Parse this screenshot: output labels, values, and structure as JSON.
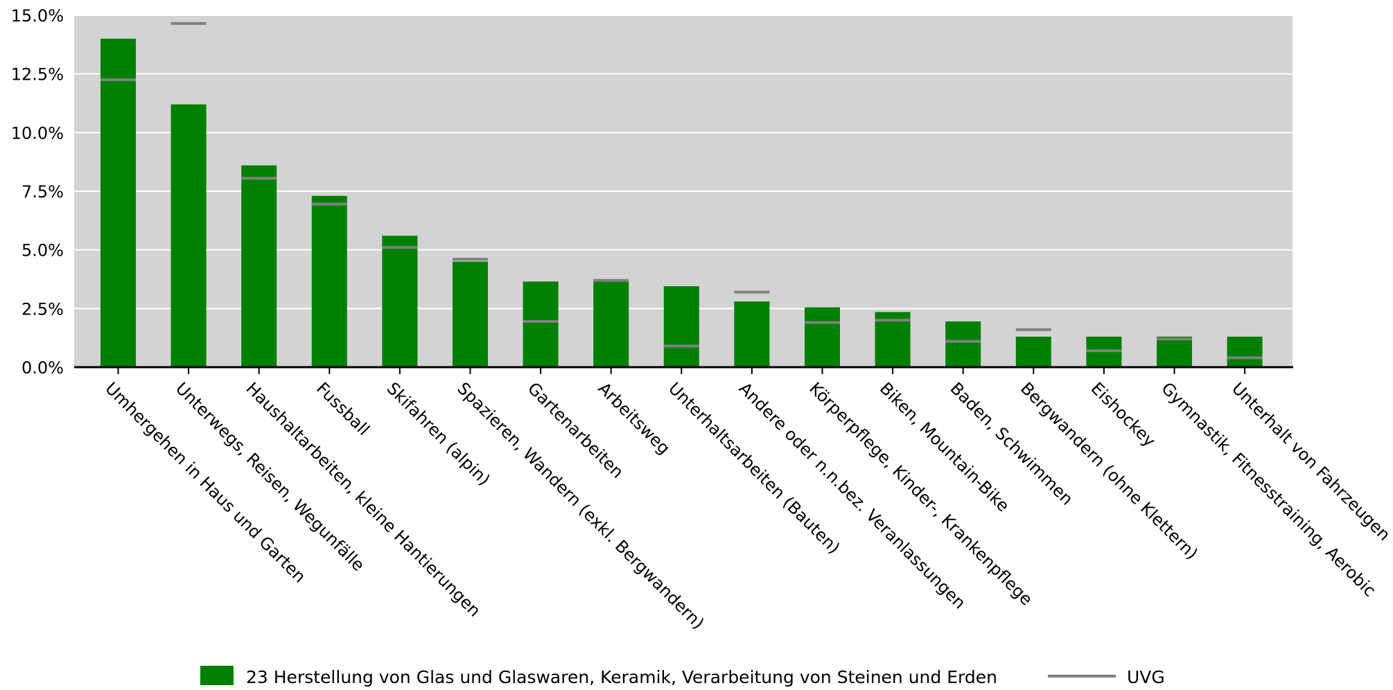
{
  "chart_data": {
    "type": "bar",
    "title": "",
    "xlabel": "",
    "ylabel": "",
    "ylim": [
      0,
      15
    ],
    "yticks": [
      "0.0%",
      "2.5%",
      "5.0%",
      "7.5%",
      "10.0%",
      "12.5%",
      "15.0%"
    ],
    "grid": true,
    "legend_position": "bottom",
    "colors": {
      "bar": "#008000",
      "marker": "#808080",
      "plot_background": "#d3d3d3",
      "grid": "#ffffff",
      "axis": "#000000"
    },
    "categories": [
      "Umhergehen in Haus und Garten",
      "Unterwegs, Reisen, Wegunfälle",
      "Haushaltarbeiten, kleine Hantierungen",
      "Fussball",
      "Skifahren (alpin)",
      "Spazieren, Wandern (exkl. Bergwandern)",
      "Gartenarbeiten",
      "Arbeitsweg",
      "Unterhaltsarbeiten (Bauten)",
      "Andere oder n.n.bez. Veranlassungen",
      "Körperpflege, Kinder-, Krankenpflege",
      "Biken, Mountain-Bike",
      "Baden, Schwimmen",
      "Bergwandern (ohne Klettern)",
      "Eishockey",
      "Gymnastik, Fitnesstraining, Aerobic",
      "Unterhalt von Fahrzeugen"
    ],
    "series": [
      {
        "name": "23 Herstellung von Glas und Glaswaren, Keramik, Verarbeitung von Steinen und Erden",
        "kind": "bar",
        "values": [
          14.0,
          11.2,
          8.6,
          7.3,
          5.6,
          4.5,
          3.65,
          3.65,
          3.45,
          2.8,
          2.55,
          2.35,
          1.95,
          1.3,
          1.3,
          1.3,
          1.3
        ]
      },
      {
        "name": "UVG",
        "kind": "marker",
        "values": [
          12.25,
          14.65,
          8.05,
          6.95,
          5.1,
          4.6,
          1.95,
          3.7,
          0.9,
          3.2,
          1.9,
          2.0,
          1.1,
          1.6,
          0.7,
          1.2,
          0.4
        ]
      }
    ]
  }
}
